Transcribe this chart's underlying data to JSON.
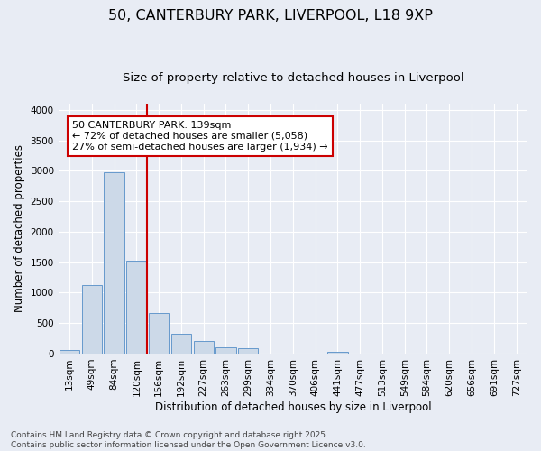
{
  "title_line1": "50, CANTERBURY PARK, LIVERPOOL, L18 9XP",
  "title_line2": "Size of property relative to detached houses in Liverpool",
  "xlabel": "Distribution of detached houses by size in Liverpool",
  "ylabel": "Number of detached properties",
  "categories": [
    "13sqm",
    "49sqm",
    "84sqm",
    "120sqm",
    "156sqm",
    "192sqm",
    "227sqm",
    "263sqm",
    "299sqm",
    "334sqm",
    "370sqm",
    "406sqm",
    "441sqm",
    "477sqm",
    "513sqm",
    "549sqm",
    "584sqm",
    "620sqm",
    "656sqm",
    "691sqm",
    "727sqm"
  ],
  "values": [
    55,
    1120,
    2970,
    1530,
    660,
    330,
    210,
    100,
    95,
    0,
    0,
    0,
    35,
    0,
    0,
    0,
    0,
    0,
    0,
    0,
    0
  ],
  "bar_color": "#ccd9e8",
  "bar_edge_color": "#6699cc",
  "vline_color": "#cc0000",
  "annotation_text": "50 CANTERBURY PARK: 139sqm\n← 72% of detached houses are smaller (5,058)\n27% of semi-detached houses are larger (1,934) →",
  "annotation_box_color": "#cc0000",
  "ylim": [
    0,
    4100
  ],
  "yticks": [
    0,
    500,
    1000,
    1500,
    2000,
    2500,
    3000,
    3500,
    4000
  ],
  "bg_color": "#e8ecf4",
  "grid_color": "#ffffff",
  "footnote": "Contains HM Land Registry data © Crown copyright and database right 2025.\nContains public sector information licensed under the Open Government Licence v3.0.",
  "title_fontsize": 11.5,
  "subtitle_fontsize": 9.5,
  "label_fontsize": 8.5,
  "tick_fontsize": 7.5,
  "annot_fontsize": 8,
  "footnote_fontsize": 6.5
}
